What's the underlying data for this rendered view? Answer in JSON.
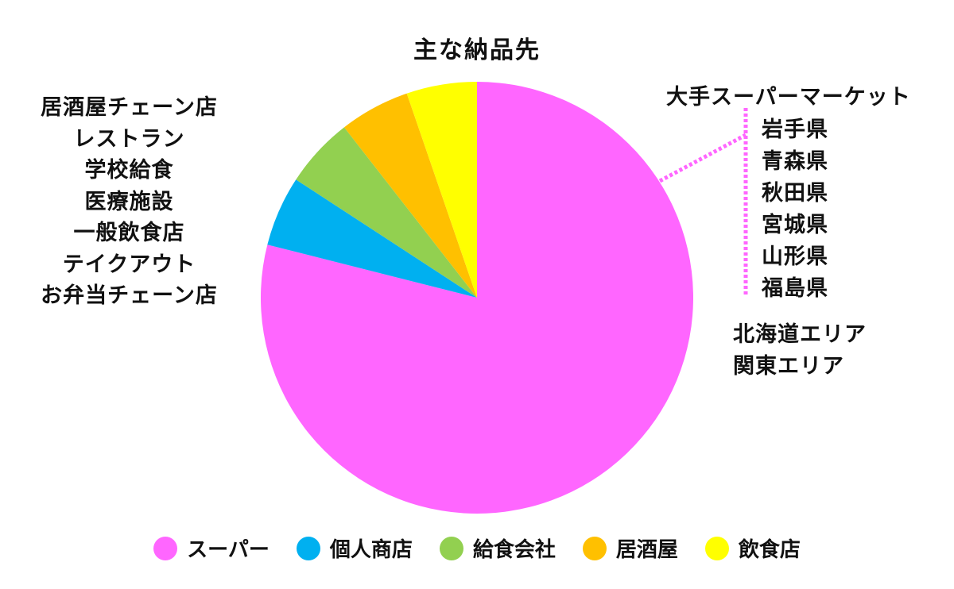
{
  "chart_data": {
    "type": "pie",
    "title": "主な納品先",
    "categories": [
      "スーパー",
      "個人商店",
      "給食会社",
      "居酒屋",
      "飲食店"
    ],
    "values": [
      75,
      5,
      5,
      5,
      5
    ],
    "colors": [
      "#ff66ff",
      "#00b0f0",
      "#92d050",
      "#ffc000",
      "#ffff00"
    ],
    "legend_position": "bottom"
  },
  "annotations": {
    "left_list": [
      "居酒屋チェーン店",
      "レストラン",
      "学校給食",
      "医療施設",
      "一般飲食店",
      "テイクアウト",
      "お弁当チェーン店"
    ],
    "supermarket_heading": "大手スーパーマーケット",
    "prefectures": [
      "岩手県",
      "青森県",
      "秋田県",
      "宮城県",
      "山形県",
      "福島県"
    ],
    "areas": [
      "北海道エリア",
      "関東エリア"
    ],
    "connector_color": "#ff66ff"
  }
}
